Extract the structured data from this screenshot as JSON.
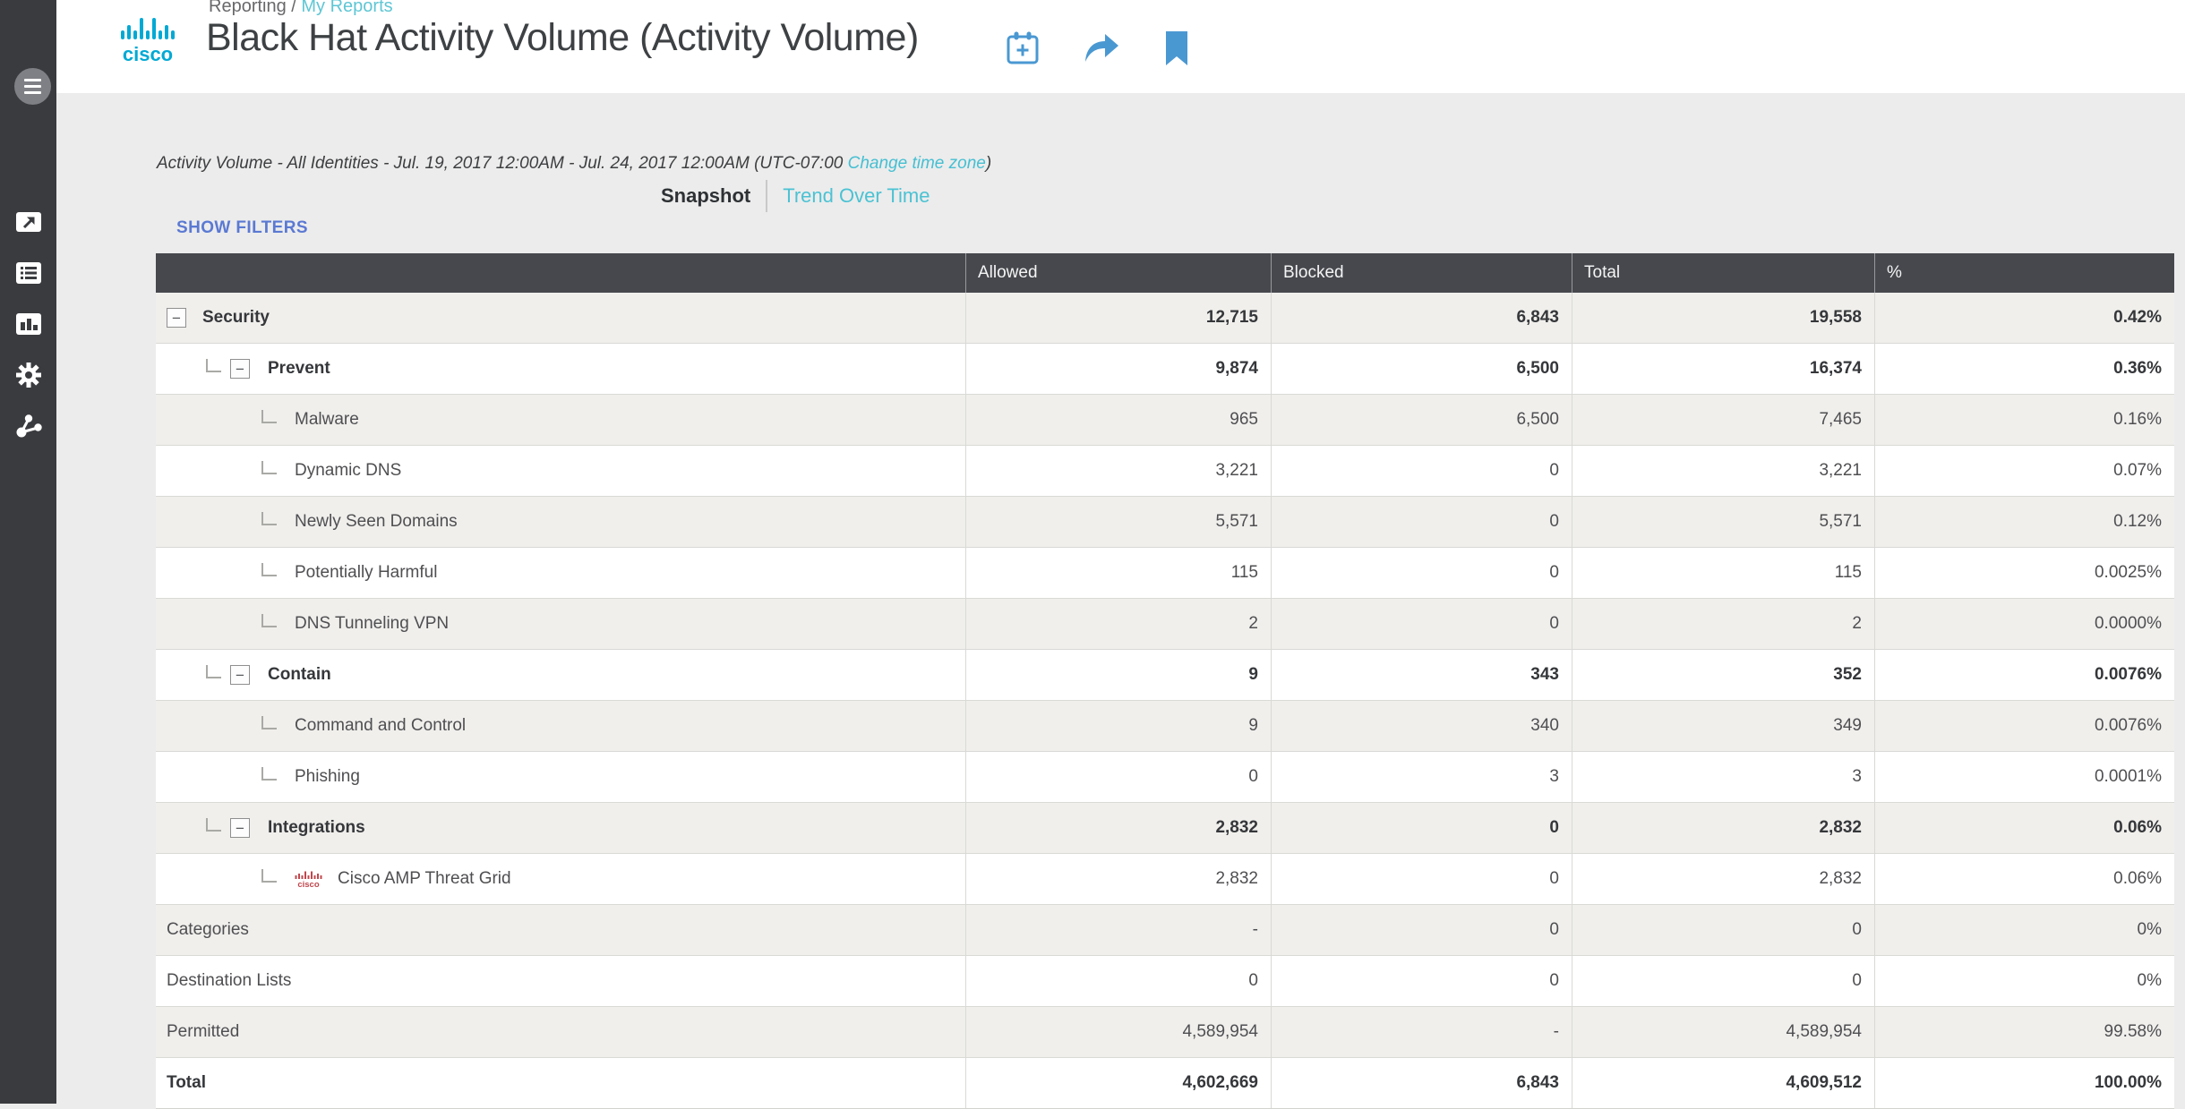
{
  "colors": {
    "accent_blue": "#4a98d2",
    "teal_link": "#4bc2d3",
    "filters_link_blue": "#5b79d3",
    "table_header_bg": "#46484d",
    "sidebar_bg": "#3a3b3f",
    "row_alt_bg": "#f0efec",
    "cisco_logo_blue": "#00a9d4",
    "cisco_amp_red": "#c0474d"
  },
  "sidebar": {
    "menu_icon": "hamburger-menu-icon",
    "nav_icons": [
      "overview-launch-icon",
      "activity-log-list-icon",
      "reports-bar-chart-icon",
      "settings-gear-icon",
      "network-share-icon"
    ]
  },
  "header": {
    "breadcrumb": {
      "section": "Reporting",
      "divider": " / ",
      "current": "My Reports"
    },
    "title": "Black Hat Activity Volume (Activity Volume)",
    "actions": [
      "schedule-calendar-icon",
      "share-icon",
      "bookmark-icon"
    ]
  },
  "meta": {
    "text_before_link": "Activity Volume - All Identities - Jul. 19, 2017 12:00AM - Jul. 24, 2017 12:00AM (UTC-07:00 ",
    "link": "Change time zone",
    "text_after_link": ")"
  },
  "tabs": {
    "items": [
      {
        "label": "Snapshot",
        "active": true
      },
      {
        "label": "Trend Over Time",
        "active": false
      }
    ]
  },
  "filters": {
    "label": "SHOW FILTERS"
  },
  "table": {
    "collapse_glyph": "−",
    "columns": [
      "",
      "Allowed",
      "Blocked",
      "Total",
      "%"
    ],
    "rows": [
      {
        "label": "Security",
        "level": 0,
        "expander": true,
        "connector": false,
        "bold": true,
        "icon": null,
        "allowed": "12,715",
        "blocked": "6,843",
        "total": "19,558",
        "percent": "0.42%"
      },
      {
        "label": "Prevent",
        "level": 1,
        "expander": true,
        "connector": true,
        "bold": true,
        "icon": null,
        "allowed": "9,874",
        "blocked": "6,500",
        "total": "16,374",
        "percent": "0.36%"
      },
      {
        "label": "Malware",
        "level": 2,
        "expander": false,
        "connector": true,
        "bold": false,
        "icon": null,
        "allowed": "965",
        "blocked": "6,500",
        "total": "7,465",
        "percent": "0.16%"
      },
      {
        "label": "Dynamic DNS",
        "level": 2,
        "expander": false,
        "connector": true,
        "bold": false,
        "icon": null,
        "allowed": "3,221",
        "blocked": "0",
        "total": "3,221",
        "percent": "0.07%"
      },
      {
        "label": "Newly Seen Domains",
        "level": 2,
        "expander": false,
        "connector": true,
        "bold": false,
        "icon": null,
        "allowed": "5,571",
        "blocked": "0",
        "total": "5,571",
        "percent": "0.12%"
      },
      {
        "label": "Potentially Harmful",
        "level": 2,
        "expander": false,
        "connector": true,
        "bold": false,
        "icon": null,
        "allowed": "115",
        "blocked": "0",
        "total": "115",
        "percent": "0.0025%"
      },
      {
        "label": "DNS Tunneling VPN",
        "level": 2,
        "expander": false,
        "connector": true,
        "bold": false,
        "icon": null,
        "allowed": "2",
        "blocked": "0",
        "total": "2",
        "percent": "0.0000%"
      },
      {
        "label": "Contain",
        "level": 1,
        "expander": true,
        "connector": true,
        "bold": true,
        "icon": null,
        "allowed": "9",
        "blocked": "343",
        "total": "352",
        "percent": "0.0076%"
      },
      {
        "label": "Command and Control",
        "level": 2,
        "expander": false,
        "connector": true,
        "bold": false,
        "icon": null,
        "allowed": "9",
        "blocked": "340",
        "total": "349",
        "percent": "0.0076%"
      },
      {
        "label": "Phishing",
        "level": 2,
        "expander": false,
        "connector": true,
        "bold": false,
        "icon": null,
        "allowed": "0",
        "blocked": "3",
        "total": "3",
        "percent": "0.0001%"
      },
      {
        "label": "Integrations",
        "level": 1,
        "expander": true,
        "connector": true,
        "bold": true,
        "icon": null,
        "allowed": "2,832",
        "blocked": "0",
        "total": "2,832",
        "percent": "0.06%"
      },
      {
        "label": "Cisco AMP Threat Grid",
        "level": 2,
        "expander": false,
        "connector": true,
        "bold": false,
        "icon": "cisco-amp-icon",
        "allowed": "2,832",
        "blocked": "0",
        "total": "2,832",
        "percent": "0.06%"
      },
      {
        "label": "Categories",
        "level": 0,
        "expander": false,
        "connector": false,
        "bold": false,
        "icon": null,
        "allowed": "-",
        "blocked": "0",
        "total": "0",
        "percent": "0%"
      },
      {
        "label": "Destination Lists",
        "level": 0,
        "expander": false,
        "connector": false,
        "bold": false,
        "icon": null,
        "allowed": "0",
        "blocked": "0",
        "total": "0",
        "percent": "0%"
      },
      {
        "label": "Permitted",
        "level": 0,
        "expander": false,
        "connector": false,
        "bold": false,
        "icon": null,
        "allowed": "4,589,954",
        "blocked": "-",
        "total": "4,589,954",
        "percent": "99.58%"
      },
      {
        "label": "Total",
        "level": 0,
        "expander": false,
        "connector": false,
        "bold": true,
        "icon": null,
        "allowed": "4,602,669",
        "blocked": "6,843",
        "total": "4,609,512",
        "percent": "100.00%"
      }
    ]
  }
}
